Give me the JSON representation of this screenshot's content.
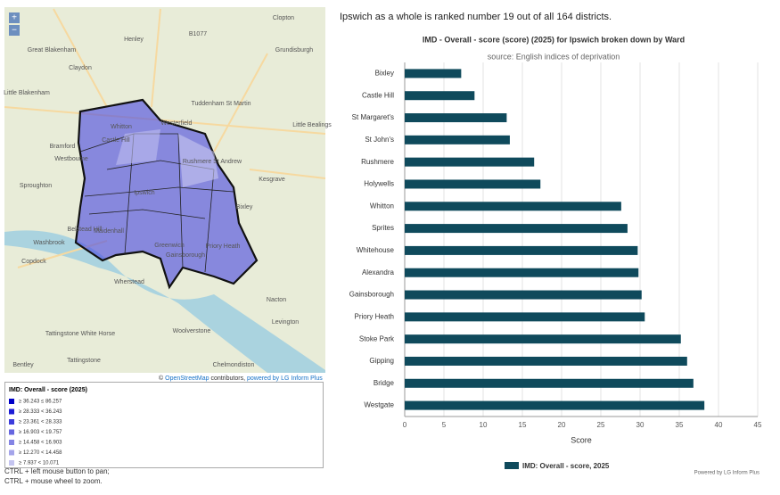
{
  "header": "Ipswich as a whole is ranked number 19 out of all 164 districts.",
  "map": {
    "zoom_in": "+",
    "zoom_out": "−",
    "place_labels": [
      "Clopton",
      "Henley",
      "Great Blakenham",
      "Claydon",
      "Grundisburgh",
      "B1077",
      "Little Blakenham",
      "Westerfield",
      "Tuddenham St Martin",
      "Little Bealings",
      "Whitton",
      "Castle Hill",
      "Bramford",
      "Rushmere St Andrew",
      "Westbourne",
      "Kesgrave",
      "Sproughton",
      "Ipswich",
      "Bixley",
      "Belstead Hill",
      "Maidenhall",
      "Washbrook",
      "Greenwich",
      "Gainsborough",
      "Priory Heath",
      "Copdock",
      "Wherstead",
      "Nacton",
      "Tattingstone White Horse",
      "Woolverstone",
      "Levington",
      "Tattingstone",
      "Bentley",
      "Chelmondiston"
    ],
    "attribution": {
      "prefix": "©",
      "link": "OpenStreetMap",
      "rest": "contributors,",
      "powered": "powered by LG Inform Plus"
    },
    "legend_title": "IMD: Overall - score (2025)",
    "legend_items": [
      {
        "label": "≥ 36.243 ≤ 86.257",
        "color": "#0000c8"
      },
      {
        "label": "≥ 28.333 < 36.243",
        "color": "#1c1cd6"
      },
      {
        "label": "≥ 23.361 < 28.333",
        "color": "#3c3cdc"
      },
      {
        "label": "≥ 16.903 < 19.757",
        "color": "#6666e0"
      },
      {
        "label": "≥ 14.458 < 16.903",
        "color": "#8484e4"
      },
      {
        "label": "≥ 12.270 < 14.458",
        "color": "#a4a4ea"
      },
      {
        "label": "≥ 7.937 < 10.071",
        "color": "#c4c4f0"
      }
    ],
    "instructions": [
      "CTRL + left mouse button to pan;",
      "CTRL + mouse wheel to zoom."
    ]
  },
  "chart_data": {
    "type": "bar",
    "orientation": "horizontal",
    "title": "IMD - Overall - score (score) (2025) for Ipswich broken down by Ward",
    "subtitle": "source: English indices of deprivation",
    "x_label": "Score",
    "categories": [
      "Bixley",
      "Castle Hill",
      "St Margaret's",
      "St John's",
      "Rushmere",
      "Holywells",
      "Whitton",
      "Sprites",
      "Whitehouse",
      "Alexandra",
      "Gainsborough",
      "Priory Heath",
      "Stoke Park",
      "Gipping",
      "Bridge",
      "Westgate"
    ],
    "series": [
      {
        "name": "IMD: Overall - score, 2025",
        "color": "#0f4a5c",
        "values": [
          7.2,
          8.9,
          13.0,
          13.4,
          16.5,
          17.3,
          27.6,
          28.4,
          29.7,
          29.8,
          30.2,
          30.6,
          35.2,
          36.0,
          36.8,
          38.2
        ]
      }
    ],
    "xlim": [
      0,
      45
    ],
    "xticks": [
      0,
      5,
      10,
      15,
      20,
      25,
      30,
      35,
      40,
      45
    ],
    "grid": true,
    "legend": "bottom",
    "credit": "Powered by LG Inform Plus"
  }
}
